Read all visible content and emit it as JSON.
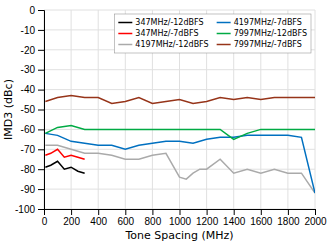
{
  "chart_data": {
    "type": "line",
    "xlabel": "Tone Spacing (MHz)",
    "ylabel": "IMD3 (dBc)",
    "xlim": [
      0,
      2000
    ],
    "ylim": [
      -100,
      0
    ],
    "xticks": [
      0,
      200,
      400,
      600,
      800,
      1000,
      1200,
      1400,
      1600,
      1800,
      2000
    ],
    "yticks": [
      0,
      -10,
      -20,
      -30,
      -40,
      -50,
      -60,
      -70,
      -80,
      -90,
      -100
    ],
    "grid": true,
    "legend": "upper right",
    "series": [
      {
        "name": "347MHz/-12dBFS",
        "color": "#000000",
        "x": [
          10,
          50,
          100,
          150,
          200,
          250,
          300
        ],
        "values": [
          -79,
          -78,
          -76,
          -80,
          -79,
          -81,
          -82
        ]
      },
      {
        "name": "347MHz/-7dBFS",
        "color": "#ff0000",
        "x": [
          10,
          50,
          100,
          150,
          200,
          250,
          300
        ],
        "values": [
          -73,
          -72,
          -70,
          -74,
          -73,
          -74,
          -75
        ]
      },
      {
        "name": "4197MHz/-12dBFS",
        "color": "#aaaaaa",
        "x": [
          10,
          100,
          200,
          300,
          400,
          500,
          600,
          700,
          800,
          900,
          1000,
          1050,
          1100,
          1150,
          1200,
          1300,
          1400,
          1500,
          1600,
          1700,
          1800,
          1900,
          2000
        ],
        "values": [
          -68,
          -68,
          -70,
          -72,
          -72,
          -73,
          -75,
          -75,
          -73,
          -72,
          -84,
          -85,
          -82,
          -80,
          -80,
          -75,
          -82,
          -80,
          -82,
          -80,
          -82,
          -82,
          -92
        ]
      },
      {
        "name": "4197MHz/-7dBFS",
        "color": "#0070c0",
        "x": [
          10,
          100,
          200,
          300,
          400,
          500,
          600,
          700,
          800,
          900,
          1000,
          1100,
          1200,
          1300,
          1400,
          1500,
          1600,
          1700,
          1800,
          1900,
          2000
        ],
        "values": [
          -62,
          -63,
          -66,
          -67,
          -68,
          -68,
          -70,
          -68,
          -67,
          -66,
          -66,
          -67,
          -65,
          -64,
          -64,
          -63,
          -63,
          -63,
          -63,
          -64,
          -92
        ]
      },
      {
        "name": "7997MHz/-12dBFS",
        "color": "#00aa44",
        "x": [
          10,
          100,
          200,
          300,
          400,
          500,
          600,
          700,
          800,
          900,
          1000,
          1100,
          1200,
          1300,
          1400,
          1500,
          1600,
          1700,
          1800,
          1900,
          2000
        ],
        "values": [
          -62,
          -59,
          -58,
          -60,
          -60,
          -60,
          -60,
          -60,
          -60,
          -60,
          -60,
          -60,
          -60,
          -60,
          -65,
          -62,
          -60,
          -60,
          -60,
          -60,
          -60
        ]
      },
      {
        "name": "7997MHz/-7dBFS",
        "color": "#963419",
        "x": [
          10,
          100,
          200,
          300,
          400,
          500,
          600,
          700,
          800,
          900,
          1000,
          1100,
          1200,
          1300,
          1400,
          1500,
          1600,
          1700,
          1800,
          1900,
          2000
        ],
        "values": [
          -46,
          -44,
          -43,
          -44,
          -44,
          -47,
          -46,
          -44,
          -47,
          -46,
          -45,
          -47,
          -46,
          -44,
          -45,
          -44,
          -45,
          -44,
          -44,
          -44,
          -44
        ]
      }
    ]
  }
}
